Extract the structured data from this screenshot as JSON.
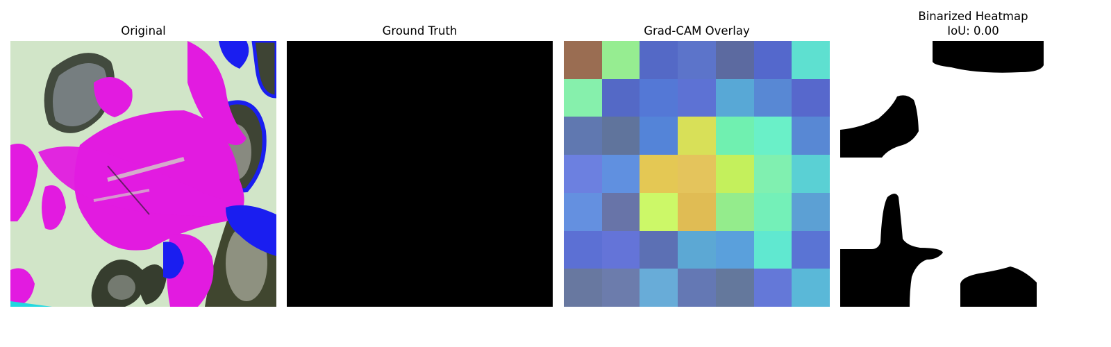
{
  "panels": {
    "original": {
      "title": "Original"
    },
    "ground_truth": {
      "title": "Ground Truth"
    },
    "gradcam": {
      "title": "Grad-CAM Overlay",
      "grid": [
        [
          "#9a6d52",
          "#96ed91",
          "#5469c6",
          "#5c74ca",
          "#5c6aa0",
          "#5468cc",
          "#5ee0d0"
        ],
        [
          "#86f0ac",
          "#5469c6",
          "#5478d6",
          "#5d72d4",
          "#58a8d6",
          "#5888d4",
          "#5768cc"
        ],
        [
          "#6078b0",
          "#60749c",
          "#5484d8",
          "#d8e058",
          "#70f0b0",
          "#6af0c8",
          "#5888d4"
        ],
        [
          "#6c80e0",
          "#6090e0",
          "#e4c854",
          "#e4c45c",
          "#c4f05c",
          "#80f0b0",
          "#5ad0d4"
        ],
        [
          "#6490e0",
          "#6874a8",
          "#ccf868",
          "#e0bc54",
          "#94ec8c",
          "#74f0b8",
          "#5ca0d4"
        ],
        [
          "#5c70d4",
          "#6474d8",
          "#5c70b4",
          "#5ca8d4",
          "#5aa0dc",
          "#60e8d0",
          "#5a74d4"
        ],
        [
          "#6878a0",
          "#6c7cac",
          "#68acd8",
          "#6478b4",
          "#64789c",
          "#6478d8",
          "#5ab8d8"
        ]
      ]
    },
    "binarized": {
      "title": "Binarized Heatmap",
      "subtitle": "IoU: 0.00"
    }
  },
  "colors": {
    "magenta": "#e21be0",
    "pale_green": "#d8ead0",
    "gray_blob": "#6f7d80",
    "dark_olive": "#3c4230",
    "blue": "#1a1ef0",
    "background_white": "#ffffff",
    "mask_black": "#000000"
  }
}
